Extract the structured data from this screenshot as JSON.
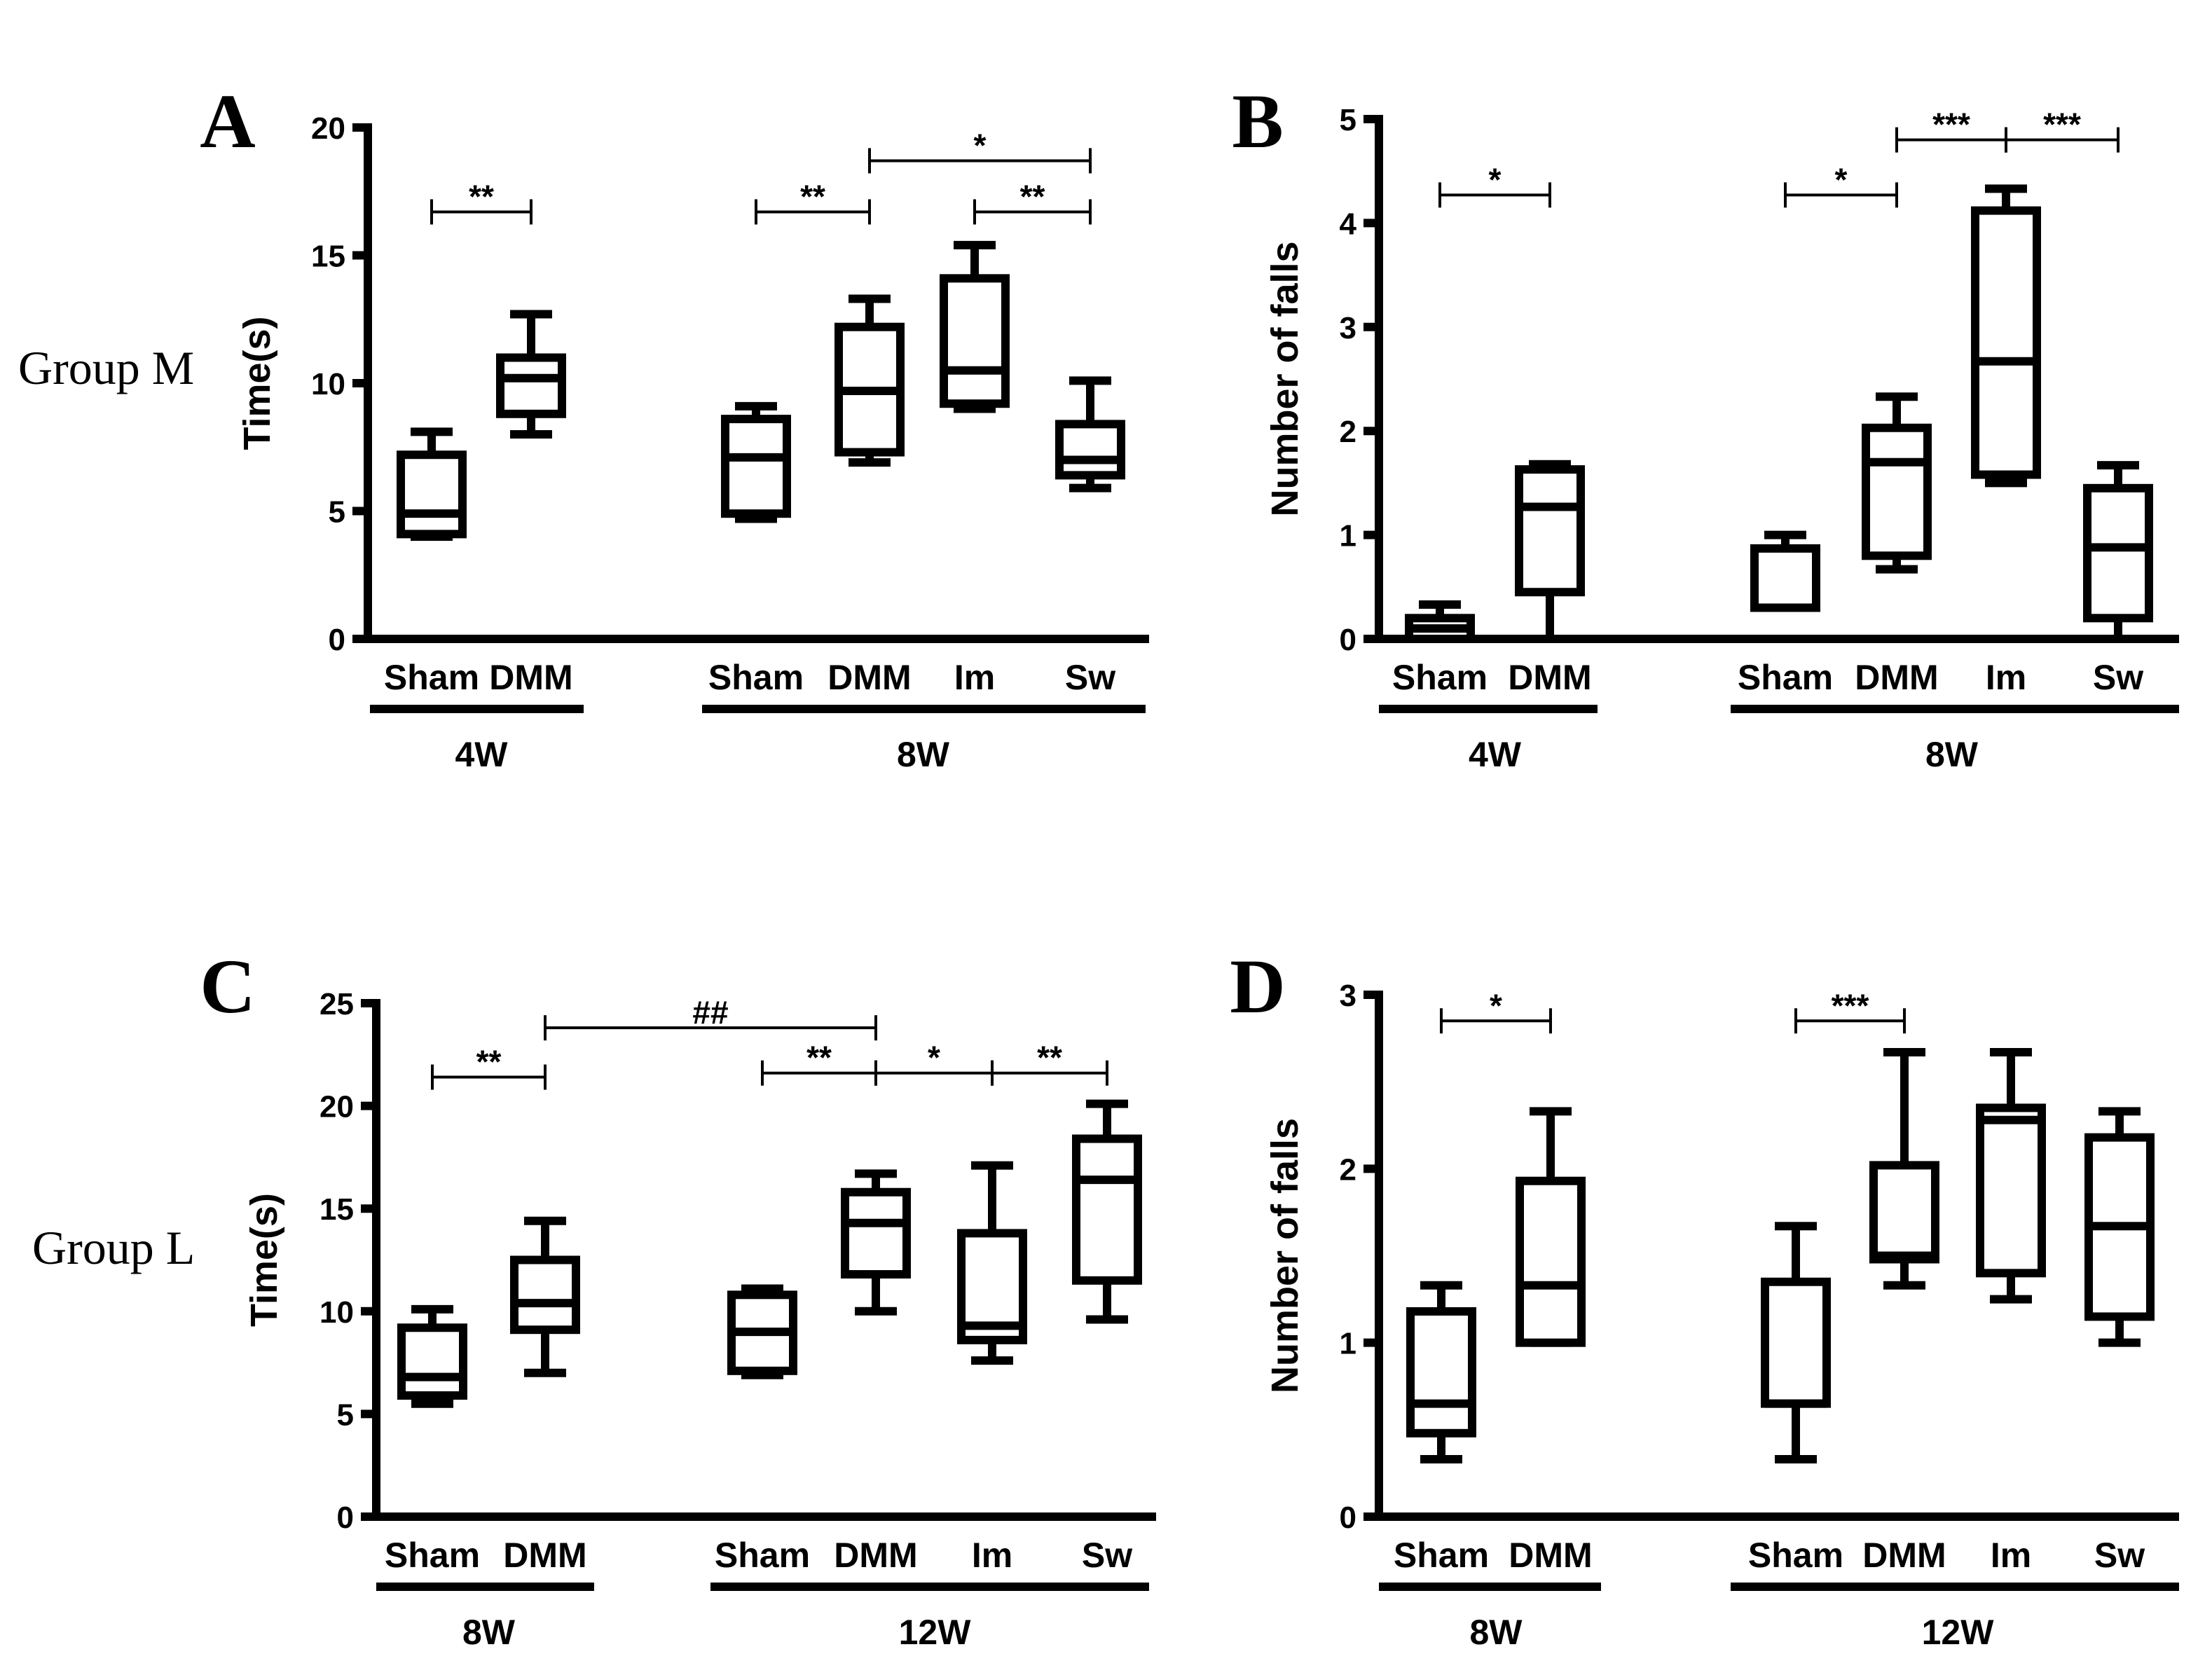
{
  "figure": {
    "group_labels": [
      {
        "key": "M",
        "text": "Group M"
      },
      {
        "key": "L",
        "text": "Group L"
      }
    ]
  },
  "chart_data": [
    {
      "id": "A",
      "panel_letter": "A",
      "type": "box",
      "row_group": "M",
      "ylabel": "Time(s)",
      "ylim": [
        0,
        20
      ],
      "yticks": [
        0,
        5,
        10,
        15,
        20
      ],
      "boxes": [
        {
          "label": "Sham",
          "group": "4W",
          "min": 4.0,
          "q1": 4.1,
          "median": 4.9,
          "q3": 7.2,
          "max": 8.1
        },
        {
          "label": "DMM",
          "group": "4W",
          "min": 8.0,
          "q1": 8.8,
          "median": 10.2,
          "q3": 11.0,
          "max": 12.7
        },
        {
          "label": "Sham",
          "group": "8W",
          "min": 4.7,
          "q1": 4.9,
          "median": 7.1,
          "q3": 8.6,
          "max": 9.1
        },
        {
          "label": "DMM",
          "group": "8W",
          "min": 6.9,
          "q1": 7.3,
          "median": 9.7,
          "q3": 12.2,
          "max": 13.3
        },
        {
          "label": "Im",
          "group": "8W",
          "min": 9.0,
          "q1": 9.2,
          "median": 10.5,
          "q3": 14.1,
          "max": 15.4
        },
        {
          "label": "Sw",
          "group": "8W",
          "min": 5.9,
          "q1": 6.4,
          "median": 7.0,
          "q3": 8.4,
          "max": 10.1
        }
      ],
      "groups": [
        {
          "label": "4W",
          "boxes": [
            0,
            1
          ]
        },
        {
          "label": "8W",
          "boxes": [
            2,
            5
          ]
        }
      ],
      "significance": [
        {
          "from": 0,
          "to": 1,
          "label": "**",
          "level": 16.7
        },
        {
          "from": 2,
          "to": 3,
          "label": "**",
          "level": 16.7
        },
        {
          "from": 4,
          "to": 5,
          "label": "**",
          "level": 16.7
        },
        {
          "from": 3,
          "to": 5,
          "label": "*",
          "level": 18.7
        }
      ]
    },
    {
      "id": "B",
      "panel_letter": "B",
      "type": "box",
      "row_group": "M",
      "ylabel": "Number of falls",
      "ylim": [
        0,
        5
      ],
      "yticks": [
        0,
        1,
        2,
        3,
        4,
        5
      ],
      "boxes": [
        {
          "label": "Sham",
          "group": "4W",
          "min": 0.0,
          "q1": 0.0,
          "median": 0.1,
          "q3": 0.2,
          "max": 0.33
        },
        {
          "label": "DMM",
          "group": "4W",
          "min": 0.0,
          "q1": 0.45,
          "median": 1.27,
          "q3": 1.63,
          "max": 1.68
        },
        {
          "label": "Sham",
          "group": "8W",
          "min": 0.3,
          "q1": 0.3,
          "median": 0.3,
          "q3": 0.87,
          "max": 1.0
        },
        {
          "label": "DMM",
          "group": "8W",
          "min": 0.67,
          "q1": 0.8,
          "median": 1.7,
          "q3": 2.03,
          "max": 2.33
        },
        {
          "label": "Im",
          "group": "8W",
          "min": 1.5,
          "q1": 1.58,
          "median": 2.67,
          "q3": 4.12,
          "max": 4.33
        },
        {
          "label": "Sw",
          "group": "8W",
          "min": 0.0,
          "q1": 0.2,
          "median": 0.88,
          "q3": 1.45,
          "max": 1.67
        }
      ],
      "groups": [
        {
          "label": "4W",
          "boxes": [
            0,
            1
          ]
        },
        {
          "label": "8W",
          "boxes": [
            2,
            5
          ]
        }
      ],
      "significance": [
        {
          "from": 0,
          "to": 1,
          "label": "*",
          "level": 4.27
        },
        {
          "from": 2,
          "to": 3,
          "label": "*",
          "level": 4.27
        },
        {
          "from": 3,
          "to": 4,
          "label": "***",
          "level": 4.8
        },
        {
          "from": 4,
          "to": 5,
          "label": "***",
          "level": 4.8
        }
      ]
    },
    {
      "id": "C",
      "panel_letter": "C",
      "type": "box",
      "row_group": "L",
      "ylabel": "Time(s)",
      "ylim": [
        0,
        25
      ],
      "yticks": [
        0,
        5,
        10,
        15,
        20,
        25
      ],
      "boxes": [
        {
          "label": "Sham",
          "group": "8W",
          "min": 5.5,
          "q1": 5.9,
          "median": 6.8,
          "q3": 9.2,
          "max": 10.1
        },
        {
          "label": "DMM",
          "group": "8W",
          "min": 7.0,
          "q1": 9.1,
          "median": 10.4,
          "q3": 12.5,
          "max": 14.4
        },
        {
          "label": "Sham",
          "group": "12W",
          "min": 6.9,
          "q1": 7.1,
          "median": 9.0,
          "q3": 10.8,
          "max": 11.1
        },
        {
          "label": "DMM",
          "group": "12W",
          "min": 10.0,
          "q1": 11.8,
          "median": 14.3,
          "q3": 15.8,
          "max": 16.7
        },
        {
          "label": "Im",
          "group": "12W",
          "min": 7.6,
          "q1": 8.6,
          "median": 9.3,
          "q3": 13.8,
          "max": 17.1
        },
        {
          "label": "Sw",
          "group": "12W",
          "min": 9.6,
          "q1": 11.5,
          "median": 16.4,
          "q3": 18.4,
          "max": 20.1
        }
      ],
      "groups": [
        {
          "label": "8W",
          "boxes": [
            0,
            1
          ]
        },
        {
          "label": "12W",
          "boxes": [
            2,
            5
          ]
        }
      ],
      "significance": [
        {
          "from": 0,
          "to": 1,
          "label": "**",
          "level": 21.4
        },
        {
          "from": 2,
          "to": 3,
          "label": "**",
          "level": 21.6
        },
        {
          "from": 3,
          "to": 4,
          "label": "*",
          "level": 21.6
        },
        {
          "from": 4,
          "to": 5,
          "label": "**",
          "level": 21.6
        },
        {
          "from": 1,
          "to": 3,
          "label": "##",
          "level": 23.8
        }
      ]
    },
    {
      "id": "D",
      "panel_letter": "D",
      "type": "box",
      "row_group": "L",
      "ylabel": "Number of falls",
      "ylim": [
        0,
        3
      ],
      "yticks": [
        0,
        1,
        2,
        3
      ],
      "boxes": [
        {
          "label": "Sham",
          "group": "8W",
          "min": 0.33,
          "q1": 0.48,
          "median": 0.65,
          "q3": 1.18,
          "max": 1.33
        },
        {
          "label": "DMM",
          "group": "8W",
          "min": 1.0,
          "q1": 1.0,
          "median": 1.33,
          "q3": 1.93,
          "max": 2.33
        },
        {
          "label": "Sham",
          "group": "12W",
          "min": 0.33,
          "q1": 0.65,
          "median": 0.65,
          "q3": 1.35,
          "max": 1.67
        },
        {
          "label": "DMM",
          "group": "12W",
          "min": 1.33,
          "q1": 1.48,
          "median": 1.5,
          "q3": 2.02,
          "max": 2.67
        },
        {
          "label": "Im",
          "group": "12W",
          "min": 1.25,
          "q1": 1.4,
          "median": 2.28,
          "q3": 2.35,
          "max": 2.67
        },
        {
          "label": "Sw",
          "group": "12W",
          "min": 1.0,
          "q1": 1.15,
          "median": 1.67,
          "q3": 2.18,
          "max": 2.33
        }
      ],
      "groups": [
        {
          "label": "8W",
          "boxes": [
            0,
            1
          ]
        },
        {
          "label": "12W",
          "boxes": [
            2,
            5
          ]
        }
      ],
      "significance": [
        {
          "from": 0,
          "to": 1,
          "label": "*",
          "level": 2.85
        },
        {
          "from": 2,
          "to": 3,
          "label": "***",
          "level": 2.85
        }
      ]
    }
  ]
}
